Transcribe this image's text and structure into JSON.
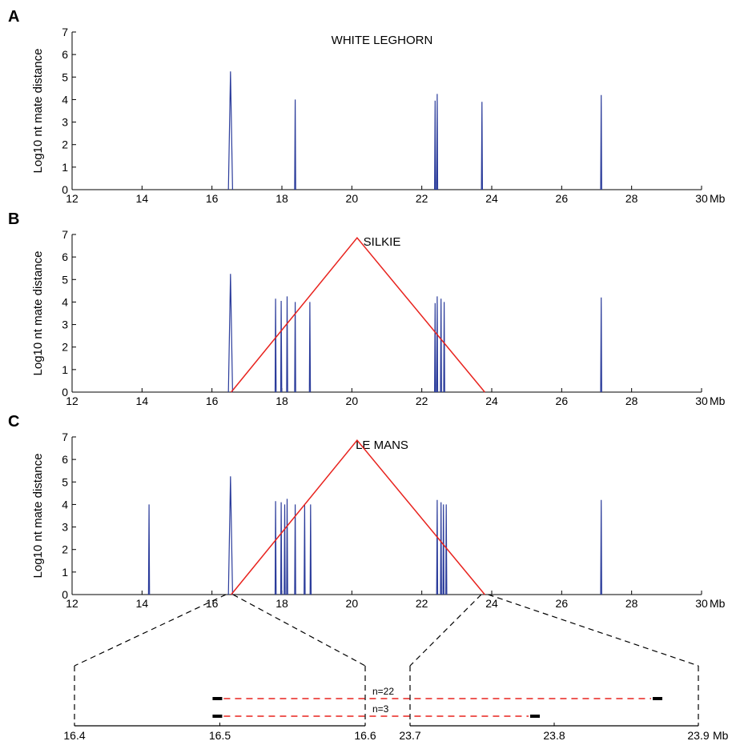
{
  "figure": {
    "x_unit": "Mb",
    "ylabel": "Log10 nt mate distance",
    "line_color": "#2b3c9b",
    "inversion_color": "#e8231e"
  },
  "chart_data": [
    {
      "type": "line",
      "panel_label": "A",
      "title": "WHITE LEGHORN",
      "xlabel": "Mb",
      "ylabel": "Log10 nt mate distance",
      "xlim": [
        12,
        30
      ],
      "ylim": [
        0,
        7
      ],
      "xticks": [
        12,
        14,
        16,
        18,
        20,
        22,
        24,
        26,
        28,
        30
      ],
      "yticks": [
        0,
        1,
        2,
        3,
        4,
        5,
        6,
        7
      ],
      "spikes": [
        {
          "x": 16.53,
          "y": 5.25,
          "w": 0.12
        },
        {
          "x": 18.38,
          "y": 4.0
        },
        {
          "x": 22.38,
          "y": 3.95
        },
        {
          "x": 22.44,
          "y": 4.25
        },
        {
          "x": 23.72,
          "y": 3.9
        },
        {
          "x": 27.13,
          "y": 4.2
        }
      ]
    },
    {
      "type": "line",
      "panel_label": "B",
      "title": "SILKIE",
      "xlabel": "Mb",
      "ylabel": "Log10 nt mate distance",
      "xlim": [
        12,
        30
      ],
      "ylim": [
        0,
        7
      ],
      "xticks": [
        12,
        14,
        16,
        18,
        20,
        22,
        24,
        26,
        28,
        30
      ],
      "yticks": [
        0,
        1,
        2,
        3,
        4,
        5,
        6,
        7
      ],
      "spikes": [
        {
          "x": 16.53,
          "y": 5.25,
          "w": 0.12
        },
        {
          "x": 17.82,
          "y": 4.15
        },
        {
          "x": 17.98,
          "y": 4.05
        },
        {
          "x": 18.15,
          "y": 4.25
        },
        {
          "x": 18.38,
          "y": 4.0
        },
        {
          "x": 18.8,
          "y": 4.0
        },
        {
          "x": 22.38,
          "y": 3.95
        },
        {
          "x": 22.44,
          "y": 4.25
        },
        {
          "x": 22.55,
          "y": 4.15
        },
        {
          "x": 22.64,
          "y": 4.0
        },
        {
          "x": 27.13,
          "y": 4.2
        }
      ],
      "inversion": {
        "x": [
          16.55,
          20.15,
          23.8
        ],
        "y": [
          0,
          6.85,
          0
        ]
      }
    },
    {
      "type": "line",
      "panel_label": "C",
      "title": "LE MANS",
      "xlabel": "Mb",
      "ylabel": "Log10 nt mate distance",
      "xlim": [
        12,
        30
      ],
      "ylim": [
        0,
        7
      ],
      "xticks": [
        12,
        14,
        16,
        18,
        20,
        22,
        24,
        26,
        28,
        30
      ],
      "yticks": [
        0,
        1,
        2,
        3,
        4,
        5,
        6,
        7
      ],
      "spikes": [
        {
          "x": 14.2,
          "y": 4.0
        },
        {
          "x": 16.53,
          "y": 5.25,
          "w": 0.12
        },
        {
          "x": 17.82,
          "y": 4.15
        },
        {
          "x": 17.98,
          "y": 4.1
        },
        {
          "x": 18.08,
          "y": 4.0
        },
        {
          "x": 18.15,
          "y": 4.25
        },
        {
          "x": 18.38,
          "y": 4.0
        },
        {
          "x": 18.65,
          "y": 4.0
        },
        {
          "x": 18.82,
          "y": 4.0
        },
        {
          "x": 22.44,
          "y": 4.2
        },
        {
          "x": 22.55,
          "y": 4.1
        },
        {
          "x": 22.62,
          "y": 4.0
        },
        {
          "x": 22.7,
          "y": 4.0
        },
        {
          "x": 27.13,
          "y": 4.2
        }
      ],
      "inversion": {
        "x": [
          16.55,
          20.15,
          23.8
        ],
        "y": [
          0,
          6.85,
          0
        ]
      }
    }
  ],
  "zoom": {
    "left_axis": {
      "range": [
        16.4,
        16.6
      ],
      "ticks": [
        "16.4",
        "16.5",
        "16.6"
      ]
    },
    "right_axis": {
      "range": [
        23.7,
        23.9
      ],
      "ticks": [
        "23.7",
        "23.8",
        "23.9"
      ],
      "unit": "Mb"
    },
    "pairs": [
      {
        "label": "n=22",
        "start": 16.495,
        "end": 23.875
      },
      {
        "label": "n=3",
        "start": 16.495,
        "end": 23.79
      }
    ]
  }
}
